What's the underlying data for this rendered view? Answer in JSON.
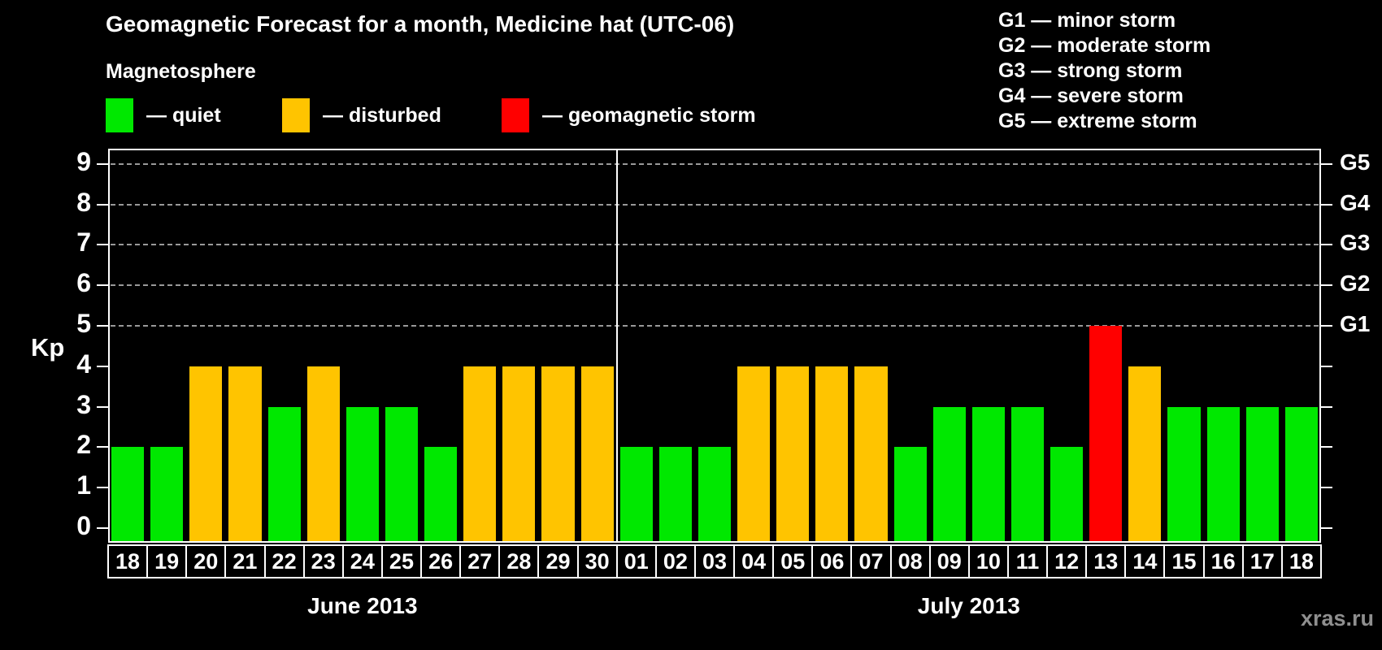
{
  "header": {
    "title": "Geomagnetic Forecast for a month, Medicine hat (UTC-06)",
    "subtitle": "Magnetosphere"
  },
  "legend": {
    "items": [
      {
        "label": "— quiet",
        "status": "quiet"
      },
      {
        "label": "— disturbed",
        "status": "disturbed"
      },
      {
        "label": "— geomagnetic storm",
        "status": "storm"
      }
    ]
  },
  "g_legend": {
    "items": [
      "G1 — minor storm",
      "G2 — moderate storm",
      "G3 — strong storm",
      "G4 — severe storm",
      "G5 — extreme storm"
    ]
  },
  "axis": {
    "kp_label": "Kp"
  },
  "watermark": "xras.ru",
  "colors": {
    "background": "#000000",
    "frame": "#ffffff",
    "gridline": "#999999",
    "watermark": "#8f8f8f"
  },
  "chart_data": {
    "type": "bar",
    "title": "Geomagnetic Forecast for a month, Medicine hat (UTC-06)",
    "ylabel": "Kp",
    "ylim": [
      0,
      9
    ],
    "grid": "dashed horizontal lines at Kp 5-9 only",
    "legend_position": "top",
    "kp_axis_ticks": [
      0,
      1,
      2,
      3,
      4,
      5,
      6,
      7,
      8,
      9
    ],
    "gridlines_at_kp": [
      5,
      6,
      7,
      8,
      9
    ],
    "g_axis_ticks": [
      {
        "label": "G1",
        "kp": 5
      },
      {
        "label": "G2",
        "kp": 6
      },
      {
        "label": "G3",
        "kp": 7
      },
      {
        "label": "G4",
        "kp": 8
      },
      {
        "label": "G5",
        "kp": 9
      }
    ],
    "status_colors": {
      "quiet": "#00e800",
      "disturbed": "#ffc400",
      "storm": "#ff0000"
    },
    "months": [
      {
        "label": "June 2013",
        "days": [
          {
            "date": "18",
            "kp": 2,
            "status": "quiet"
          },
          {
            "date": "19",
            "kp": 2,
            "status": "quiet"
          },
          {
            "date": "20",
            "kp": 4,
            "status": "disturbed"
          },
          {
            "date": "21",
            "kp": 4,
            "status": "disturbed"
          },
          {
            "date": "22",
            "kp": 3,
            "status": "quiet"
          },
          {
            "date": "23",
            "kp": 4,
            "status": "disturbed"
          },
          {
            "date": "24",
            "kp": 3,
            "status": "quiet"
          },
          {
            "date": "25",
            "kp": 3,
            "status": "quiet"
          },
          {
            "date": "26",
            "kp": 2,
            "status": "quiet"
          },
          {
            "date": "27",
            "kp": 4,
            "status": "disturbed"
          },
          {
            "date": "28",
            "kp": 4,
            "status": "disturbed"
          },
          {
            "date": "29",
            "kp": 4,
            "status": "disturbed"
          },
          {
            "date": "30",
            "kp": 4,
            "status": "disturbed"
          }
        ]
      },
      {
        "label": "July 2013",
        "days": [
          {
            "date": "01",
            "kp": 2,
            "status": "quiet"
          },
          {
            "date": "02",
            "kp": 2,
            "status": "quiet"
          },
          {
            "date": "03",
            "kp": 2,
            "status": "quiet"
          },
          {
            "date": "04",
            "kp": 4,
            "status": "disturbed"
          },
          {
            "date": "05",
            "kp": 4,
            "status": "disturbed"
          },
          {
            "date": "06",
            "kp": 4,
            "status": "disturbed"
          },
          {
            "date": "07",
            "kp": 4,
            "status": "disturbed"
          },
          {
            "date": "08",
            "kp": 2,
            "status": "quiet"
          },
          {
            "date": "09",
            "kp": 3,
            "status": "quiet"
          },
          {
            "date": "10",
            "kp": 3,
            "status": "quiet"
          },
          {
            "date": "11",
            "kp": 3,
            "status": "quiet"
          },
          {
            "date": "12",
            "kp": 2,
            "status": "quiet"
          },
          {
            "date": "13",
            "kp": 5,
            "status": "storm"
          },
          {
            "date": "14",
            "kp": 4,
            "status": "disturbed"
          },
          {
            "date": "15",
            "kp": 3,
            "status": "quiet"
          },
          {
            "date": "16",
            "kp": 3,
            "status": "quiet"
          },
          {
            "date": "17",
            "kp": 3,
            "status": "quiet"
          },
          {
            "date": "18",
            "kp": 3,
            "status": "quiet"
          }
        ]
      }
    ]
  }
}
